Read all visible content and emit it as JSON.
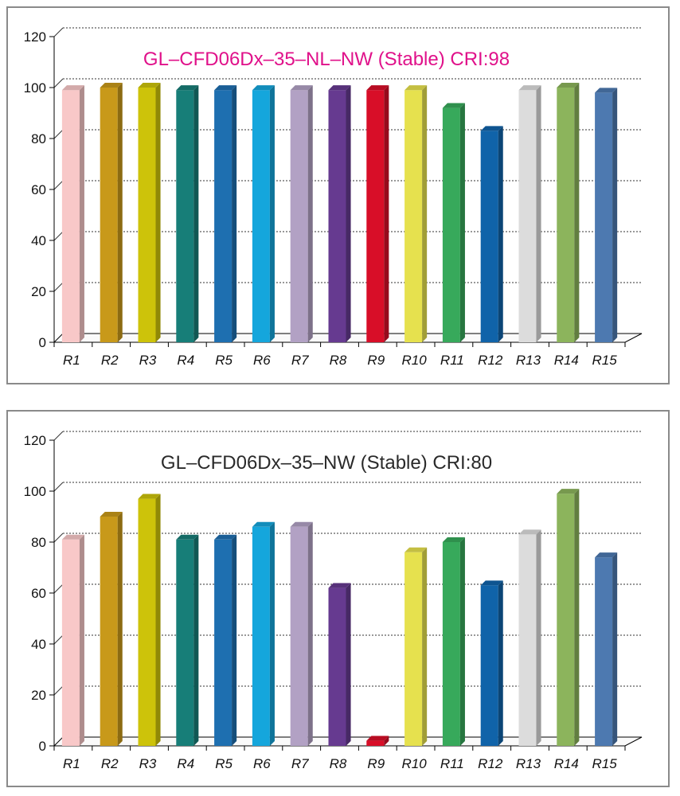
{
  "chart_data": [
    {
      "type": "bar",
      "title": "GL–CFD06Dx–35–NL–NW (Stable) CRI:98",
      "title_color": "#e0118a",
      "categories": [
        "R1",
        "R2",
        "R3",
        "R4",
        "R5",
        "R6",
        "R7",
        "R8",
        "R9",
        "R10",
        "R11",
        "R12",
        "R13",
        "R14",
        "R15"
      ],
      "values": [
        99,
        100,
        100,
        99,
        99,
        99,
        99,
        99,
        99,
        99,
        92,
        83,
        99,
        100,
        98
      ],
      "ylim": [
        0,
        120
      ],
      "yticks": [
        "0",
        "20",
        "40",
        "60",
        "80",
        "100",
        "120"
      ],
      "grid": true,
      "legend": "none"
    },
    {
      "type": "bar",
      "title": "GL–CFD06Dx–35–NW (Stable) CRI:80",
      "title_color": "#2a2a2a",
      "categories": [
        "R1",
        "R2",
        "R3",
        "R4",
        "R5",
        "R6",
        "R7",
        "R8",
        "R9",
        "R10",
        "R11",
        "R12",
        "R13",
        "R14",
        "R15"
      ],
      "values": [
        81,
        90,
        97,
        81,
        81,
        86,
        86,
        62,
        2,
        76,
        80,
        63,
        83,
        99,
        74
      ],
      "ylim": [
        0,
        120
      ],
      "yticks": [
        "0",
        "20",
        "40",
        "60",
        "80",
        "100",
        "120"
      ],
      "grid": true,
      "legend": "none"
    }
  ],
  "colors": [
    "#f8c8c8",
    "#c8991a",
    "#cdc30a",
    "#177e78",
    "#1e6fb0",
    "#15a6dc",
    "#b2a1c4",
    "#663a90",
    "#d80e28",
    "#e6e14e",
    "#37a95b",
    "#1063a9",
    "#dcdcdc",
    "#8cb45c",
    "#4d79b0"
  ]
}
